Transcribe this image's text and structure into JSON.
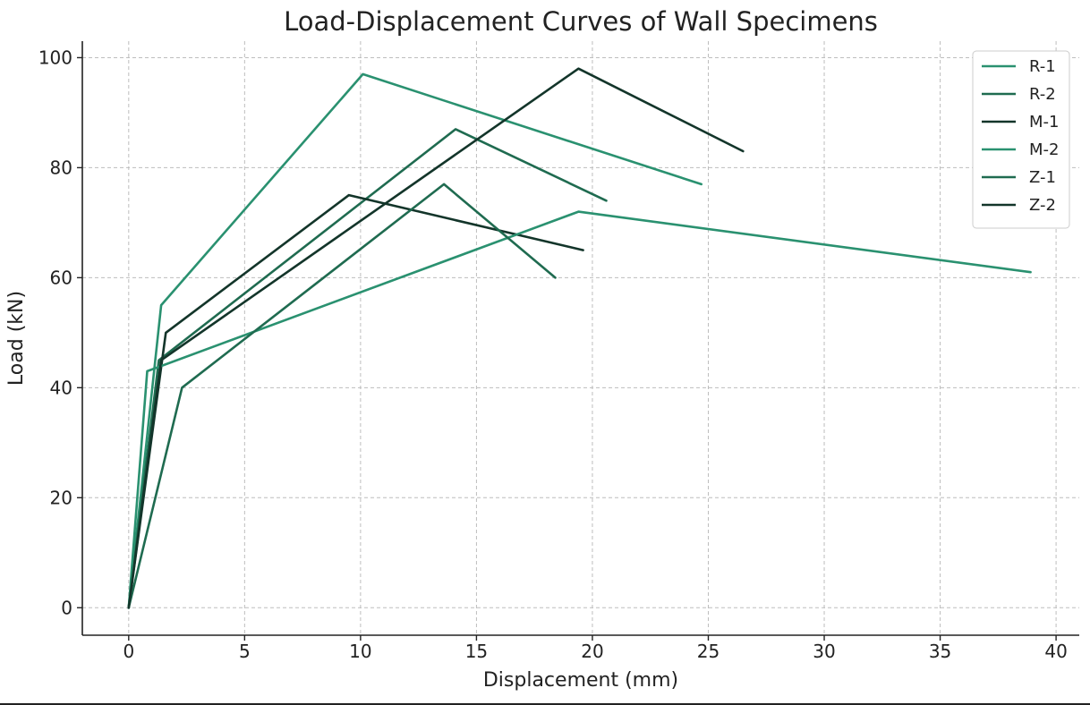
{
  "chart_data": {
    "type": "line",
    "title": "Load-Displacement Curves of Wall Specimens",
    "xlabel": "Displacement (mm)",
    "ylabel": "Load (kN)",
    "xlim": [
      -2,
      41
    ],
    "ylim": [
      -5,
      103
    ],
    "xticks": [
      0,
      5,
      10,
      15,
      20,
      25,
      30,
      35,
      40
    ],
    "yticks": [
      0,
      20,
      40,
      60,
      80,
      100
    ],
    "grid": true,
    "legend_position": "top-right",
    "series": [
      {
        "name": "R-1",
        "color": "#2a9170",
        "x": [
          0,
          1.4,
          10.1,
          24.7
        ],
        "y": [
          0,
          55,
          97,
          77
        ]
      },
      {
        "name": "R-2",
        "color": "#1f6b50",
        "x": [
          0,
          1.3,
          14.1,
          20.6
        ],
        "y": [
          0,
          45,
          87,
          74
        ]
      },
      {
        "name": "M-1",
        "color": "#13352a",
        "x": [
          0,
          1.6,
          9.5,
          19.6
        ],
        "y": [
          0,
          50,
          75,
          65
        ]
      },
      {
        "name": "M-2",
        "color": "#2a9170",
        "x": [
          0,
          0.8,
          19.4,
          38.9
        ],
        "y": [
          0,
          43,
          72,
          61
        ]
      },
      {
        "name": "Z-1",
        "color": "#1f6b50",
        "x": [
          0,
          2.3,
          13.6,
          18.4
        ],
        "y": [
          0,
          40,
          77,
          60
        ]
      },
      {
        "name": "Z-2",
        "color": "#13352a",
        "x": [
          0,
          1.4,
          19.4,
          26.5
        ],
        "y": [
          0,
          45,
          98,
          83
        ]
      }
    ]
  }
}
